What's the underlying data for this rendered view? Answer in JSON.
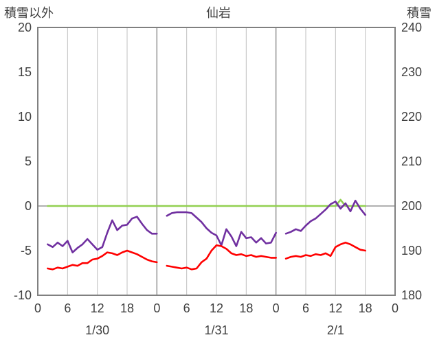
{
  "header": {
    "left_axis_title": "積雪以外",
    "chart_title": "仙岩",
    "right_axis_title": "積雪"
  },
  "chart_data": {
    "type": "line",
    "title": "仙岩",
    "left_axis_label": "積雪以外",
    "right_axis_label": "積雪",
    "grid": "vertical-only",
    "legend_position": "none",
    "x_range": [
      0,
      72
    ],
    "x_tick_step": 6,
    "x_tick_labels": [
      "0",
      "6",
      "12",
      "18",
      "0",
      "6",
      "12",
      "18",
      "0",
      "6",
      "12",
      "18",
      "0"
    ],
    "date_labels": [
      {
        "label": "1/30",
        "hour": 12
      },
      {
        "label": "1/31",
        "hour": 36
      },
      {
        "label": "2/1",
        "hour": 60
      }
    ],
    "left_axis": {
      "min": -10,
      "max": 20,
      "ticks": [
        20,
        15,
        10,
        5,
        0,
        -5,
        -10
      ]
    },
    "right_axis": {
      "min": 180,
      "max": 240,
      "ticks": [
        240,
        230,
        220,
        210,
        200,
        190,
        180
      ]
    },
    "x_hours": [
      2,
      3,
      4,
      5,
      6,
      7,
      8,
      9,
      10,
      11,
      12,
      13,
      14,
      15,
      16,
      17,
      18,
      19,
      20,
      21,
      22,
      23,
      24,
      25,
      26,
      27,
      28,
      29,
      30,
      31,
      32,
      33,
      34,
      35,
      36,
      37,
      38,
      39,
      40,
      41,
      42,
      43,
      44,
      45,
      46,
      47,
      48,
      49,
      50,
      51,
      52,
      53,
      54,
      55,
      56,
      57,
      58,
      59,
      60,
      61,
      62,
      63,
      64,
      65,
      66
    ],
    "series": [
      {
        "name": "green-line",
        "axis": "right",
        "color": "#92D050",
        "values": [
          200,
          200,
          200,
          200,
          200,
          200,
          200,
          200,
          200,
          200,
          200,
          200,
          200,
          200,
          200,
          200,
          200,
          200,
          200,
          200,
          200,
          200,
          200,
          200,
          200,
          200,
          200,
          200,
          200,
          200,
          200,
          200,
          200,
          200,
          200,
          200,
          200,
          200,
          200,
          200,
          200,
          200,
          200,
          200,
          200,
          200,
          200,
          200,
          200,
          200,
          200,
          200,
          200,
          200,
          200,
          200,
          200,
          200,
          200,
          201.4,
          200,
          200,
          200,
          200,
          200
        ]
      },
      {
        "name": "purple-line",
        "axis": "left",
        "color": "#7030A0",
        "values": [
          -4.3,
          -4.6,
          -4.1,
          -4.5,
          -3.9,
          -5.2,
          -4.7,
          -4.3,
          -3.7,
          -4.3,
          -4.9,
          -4.6,
          -3.0,
          -1.6,
          -2.7,
          -2.2,
          -2.1,
          -1.4,
          -1.2,
          -2.0,
          -2.7,
          -3.1,
          -3.1,
          null,
          -1.1,
          -0.8,
          -0.7,
          -0.7,
          -0.7,
          -0.8,
          -1.3,
          -1.8,
          -2.5,
          -3.0,
          -3.3,
          -4.4,
          -2.6,
          -3.4,
          -4.5,
          -2.9,
          -3.6,
          -3.5,
          -4.1,
          -3.6,
          -4.2,
          -4.1,
          -3.0,
          null,
          -3.1,
          -2.9,
          -2.6,
          -2.8,
          -2.2,
          -1.7,
          -1.4,
          -0.9,
          -0.4,
          0.2,
          0.5,
          -0.3,
          0.3,
          -0.6,
          0.6,
          -0.3,
          -1.0
        ]
      },
      {
        "name": "red-line",
        "axis": "left",
        "color": "#FF0000",
        "values": [
          -7.0,
          -7.1,
          -6.9,
          -7.0,
          -6.8,
          -6.6,
          -6.7,
          -6.4,
          -6.4,
          -6.0,
          -5.9,
          -5.6,
          -5.2,
          -5.3,
          -5.5,
          -5.2,
          -5.0,
          -5.2,
          -5.4,
          -5.7,
          -6.0,
          -6.2,
          -6.3,
          null,
          -6.7,
          -6.8,
          -6.9,
          -7.0,
          -6.9,
          -7.1,
          -7.0,
          -6.3,
          -5.9,
          -5.0,
          -4.4,
          -4.5,
          -4.8,
          -5.3,
          -5.5,
          -5.4,
          -5.6,
          -5.5,
          -5.7,
          -5.6,
          -5.7,
          -5.8,
          -5.8,
          null,
          -5.9,
          -5.7,
          -5.6,
          -5.7,
          -5.5,
          -5.6,
          -5.4,
          -5.5,
          -5.3,
          -5.6,
          -4.6,
          -4.3,
          -4.1,
          -4.3,
          -4.6,
          -4.9,
          -5.0
        ]
      }
    ],
    "colors": {
      "border": "#808080",
      "grid_minor": "#BFBFBF",
      "grid_major": "#808080",
      "zero_line": "#808080",
      "text": "#404040"
    }
  }
}
